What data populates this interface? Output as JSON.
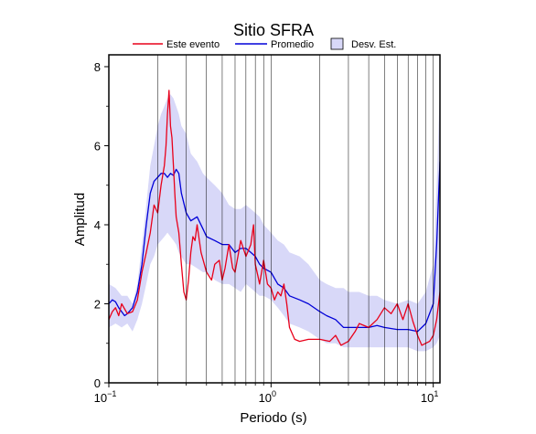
{
  "chart_data": {
    "type": "line",
    "title": "Sitio SFRA",
    "xlabel": "Periodo (s)",
    "ylabel": "Amplitud",
    "x_scale": "log",
    "xlim": [
      0.1,
      11
    ],
    "ylim": [
      0,
      8.3
    ],
    "x_ticks": [
      {
        "value": 0.1,
        "base": "10",
        "exp": "−1"
      },
      {
        "value": 1,
        "base": "10",
        "exp": "0"
      },
      {
        "value": 10,
        "base": "10",
        "exp": "1"
      }
    ],
    "y_ticks": [
      0,
      2,
      4,
      6,
      8
    ],
    "grid": true,
    "legend_position": "top",
    "legend": [
      {
        "label": "Este evento",
        "color": "#e8001a",
        "kind": "line"
      },
      {
        "label": "Promedio",
        "color": "#0000d8",
        "kind": "line"
      },
      {
        "label": "Desv. Est.",
        "color": "#d8d8f8",
        "kind": "box"
      }
    ],
    "band": {
      "name": "Desv. Est.",
      "color": "#d8d8f8",
      "x": [
        0.1,
        0.11,
        0.12,
        0.13,
        0.14,
        0.15,
        0.16,
        0.17,
        0.18,
        0.19,
        0.2,
        0.21,
        0.22,
        0.23,
        0.24,
        0.25,
        0.26,
        0.27,
        0.28,
        0.3,
        0.32,
        0.35,
        0.38,
        0.4,
        0.45,
        0.5,
        0.55,
        0.6,
        0.65,
        0.7,
        0.75,
        0.8,
        0.85,
        0.9,
        1.0,
        1.1,
        1.2,
        1.3,
        1.5,
        1.7,
        2.0,
        2.2,
        2.5,
        2.8,
        3.0,
        3.5,
        4.0,
        4.5,
        5.0,
        6.0,
        7.0,
        8.0,
        9.0,
        10.0,
        10.5,
        11.0
      ],
      "upper": [
        2.5,
        2.4,
        2.2,
        2.2,
        2.0,
        2.5,
        3.5,
        4.5,
        5.5,
        6.0,
        6.5,
        6.8,
        7.0,
        7.2,
        7.3,
        7.2,
        7.0,
        6.8,
        6.5,
        6.3,
        5.8,
        5.6,
        5.3,
        5.2,
        5.0,
        4.8,
        4.5,
        4.4,
        4.4,
        4.5,
        4.4,
        4.3,
        4.2,
        4.0,
        3.8,
        3.6,
        3.5,
        3.3,
        3.2,
        3.0,
        2.6,
        2.5,
        2.4,
        2.4,
        2.3,
        2.3,
        2.2,
        2.2,
        2.1,
        2.0,
        2.1,
        2.0,
        2.3,
        3.0,
        5.0,
        7.5
      ],
      "lower": [
        1.4,
        1.5,
        1.4,
        1.5,
        1.3,
        1.6,
        2.0,
        2.5,
        3.0,
        3.2,
        3.5,
        3.6,
        3.7,
        3.8,
        3.7,
        3.6,
        3.5,
        3.3,
        3.2,
        3.0,
        3.0,
        2.9,
        2.8,
        2.8,
        2.6,
        2.5,
        2.5,
        2.4,
        2.3,
        2.5,
        2.4,
        2.3,
        2.2,
        2.2,
        2.1,
        1.9,
        1.7,
        1.5,
        1.4,
        1.3,
        1.1,
        1.0,
        1.0,
        0.9,
        0.9,
        0.9,
        0.9,
        0.9,
        0.9,
        0.9,
        0.9,
        0.8,
        0.8,
        0.9,
        1.0,
        1.2
      ]
    },
    "series": [
      {
        "name": "Promedio",
        "color": "#0000d8",
        "x": [
          0.1,
          0.105,
          0.11,
          0.115,
          0.12,
          0.125,
          0.13,
          0.14,
          0.15,
          0.16,
          0.17,
          0.18,
          0.19,
          0.2,
          0.21,
          0.22,
          0.23,
          0.24,
          0.25,
          0.26,
          0.27,
          0.28,
          0.3,
          0.32,
          0.35,
          0.38,
          0.4,
          0.45,
          0.5,
          0.55,
          0.6,
          0.65,
          0.7,
          0.75,
          0.8,
          0.85,
          0.9,
          1.0,
          1.1,
          1.2,
          1.3,
          1.5,
          1.7,
          2.0,
          2.2,
          2.5,
          2.8,
          3.0,
          3.5,
          4.0,
          4.5,
          5.0,
          6.0,
          7.0,
          8.0,
          9.0,
          10.0,
          10.5,
          11.0
        ],
        "y": [
          2.0,
          2.1,
          2.05,
          1.9,
          1.8,
          1.7,
          1.75,
          1.9,
          2.3,
          3.0,
          4.0,
          4.8,
          5.1,
          5.2,
          5.3,
          5.3,
          5.2,
          5.3,
          5.25,
          5.4,
          5.3,
          4.8,
          4.3,
          4.1,
          4.2,
          3.9,
          3.7,
          3.6,
          3.5,
          3.5,
          3.3,
          3.4,
          3.4,
          3.3,
          3.2,
          3.0,
          2.9,
          2.8,
          2.5,
          2.4,
          2.2,
          2.1,
          2.0,
          1.8,
          1.7,
          1.6,
          1.4,
          1.4,
          1.4,
          1.4,
          1.45,
          1.4,
          1.35,
          1.35,
          1.3,
          1.5,
          2.0,
          3.5,
          5.6
        ]
      },
      {
        "name": "Este evento",
        "color": "#e8001a",
        "x": [
          0.1,
          0.105,
          0.11,
          0.115,
          0.12,
          0.13,
          0.14,
          0.15,
          0.16,
          0.17,
          0.18,
          0.19,
          0.2,
          0.21,
          0.22,
          0.225,
          0.23,
          0.235,
          0.24,
          0.245,
          0.25,
          0.255,
          0.26,
          0.27,
          0.28,
          0.29,
          0.3,
          0.31,
          0.32,
          0.33,
          0.34,
          0.35,
          0.37,
          0.4,
          0.43,
          0.45,
          0.48,
          0.5,
          0.52,
          0.55,
          0.58,
          0.6,
          0.65,
          0.7,
          0.75,
          0.78,
          0.8,
          0.83,
          0.85,
          0.9,
          0.95,
          1.0,
          1.05,
          1.1,
          1.15,
          1.2,
          1.25,
          1.3,
          1.4,
          1.5,
          1.7,
          2.0,
          2.3,
          2.5,
          2.7,
          3.0,
          3.3,
          3.5,
          4.0,
          4.5,
          5.0,
          5.5,
          6.0,
          6.5,
          7.0,
          7.5,
          8.0,
          8.5,
          9.0,
          9.5,
          10.0,
          10.5,
          11.0
        ],
        "y": [
          1.6,
          1.8,
          1.9,
          1.7,
          2.0,
          1.75,
          1.8,
          2.1,
          2.8,
          3.3,
          3.8,
          4.5,
          4.3,
          5.0,
          5.5,
          6.0,
          6.8,
          7.4,
          6.5,
          6.2,
          5.5,
          4.8,
          4.2,
          3.8,
          3.0,
          2.3,
          2.1,
          2.6,
          3.3,
          3.7,
          3.6,
          4.0,
          3.3,
          2.8,
          2.6,
          3.0,
          3.1,
          2.6,
          2.9,
          3.5,
          2.9,
          2.8,
          3.6,
          3.2,
          3.5,
          4.0,
          3.0,
          2.7,
          2.5,
          3.1,
          2.5,
          2.4,
          2.1,
          2.3,
          2.2,
          2.5,
          2.0,
          1.4,
          1.1,
          1.05,
          1.1,
          1.1,
          1.05,
          1.2,
          0.95,
          1.05,
          1.3,
          1.5,
          1.4,
          1.6,
          1.9,
          1.75,
          2.0,
          1.6,
          2.0,
          1.55,
          1.2,
          0.95,
          1.0,
          1.05,
          1.2,
          1.6,
          2.3
        ]
      }
    ]
  }
}
